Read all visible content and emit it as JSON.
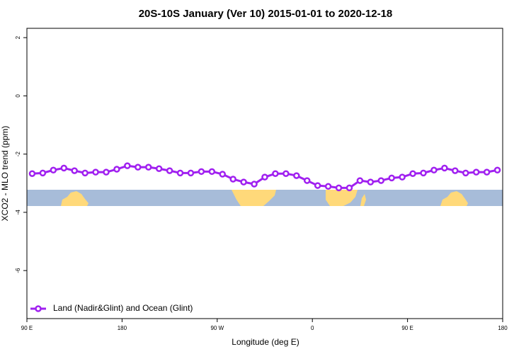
{
  "chart_data": {
    "type": "line",
    "title": "20S-10S January (Ver 10)   2015-01-01 to 2020-12-18",
    "x_label": "Longitude (deg E)",
    "y_label": "XCO2 - MLO trend (ppm)",
    "xlim": [
      90,
      540
    ],
    "xticks": [
      {
        "value": 90,
        "label": "90 E"
      },
      {
        "value": 180,
        "label": "180"
      },
      {
        "value": 270,
        "label": "90 W"
      },
      {
        "value": 360,
        "label": "0"
      },
      {
        "value": 450,
        "label": "90 E"
      },
      {
        "value": 540,
        "label": "180"
      }
    ],
    "ylim": [
      -7.65,
      2.32
    ],
    "yticks": [
      2,
      0,
      -2,
      -4,
      -6
    ],
    "legend": "bottomleft",
    "x": [
      95,
      105,
      115,
      125,
      135,
      145,
      155,
      165,
      175,
      185,
      195,
      205,
      215,
      225,
      235,
      245,
      255,
      265,
      275,
      285,
      295,
      305,
      315,
      325,
      335,
      345,
      355,
      365,
      375,
      385,
      395,
      405,
      415,
      425,
      435,
      445,
      455,
      465,
      475,
      485,
      495,
      505,
      515,
      525,
      535
    ],
    "series": [
      {
        "name": "Land (Nadir&Glint) and Ocean (Glint)",
        "color": "#a020f0",
        "values": [
          -2.67,
          -2.65,
          -2.55,
          -2.48,
          -2.57,
          -2.65,
          -2.62,
          -2.62,
          -2.52,
          -2.4,
          -2.45,
          -2.45,
          -2.5,
          -2.57,
          -2.65,
          -2.65,
          -2.6,
          -2.6,
          -2.69,
          -2.86,
          -2.96,
          -3.03,
          -2.79,
          -2.67,
          -2.67,
          -2.74,
          -2.91,
          -3.08,
          -3.11,
          -3.16,
          -3.16,
          -2.91,
          -2.96,
          -2.91,
          -2.82,
          -2.79,
          -2.67,
          -2.65,
          -2.55,
          -2.48,
          -2.57,
          -2.65,
          -2.62,
          -2.62,
          -2.55
        ]
      }
    ]
  }
}
